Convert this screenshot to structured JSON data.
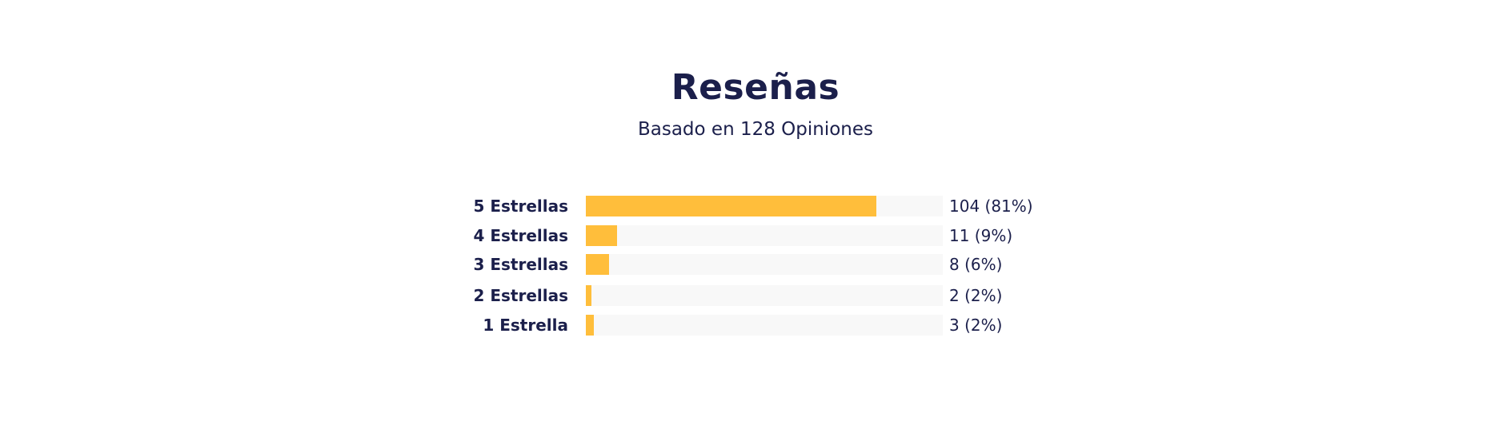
{
  "reviews": {
    "title": "Reseñas",
    "subtitle": "Basado en 128 Opiniones",
    "bar_color": "#ffbe3b",
    "track_color": "#f8f8f8",
    "text_color": "#1b1f4b",
    "rows": [
      {
        "label": "5 Estrellas",
        "count": "104 (81%)",
        "fill_fraction": 0.815
      },
      {
        "label": "4 Estrellas",
        "count": "11 (9%)",
        "fill_fraction": 0.088
      },
      {
        "label": "3 Estrellas",
        "count": "8 (6%)",
        "fill_fraction": 0.065
      },
      {
        "label": "2 Estrellas",
        "count": "2 (2%)",
        "fill_fraction": 0.016
      },
      {
        "label": "1 Estrella",
        "count": "3 (2%)",
        "fill_fraction": 0.022
      }
    ]
  }
}
